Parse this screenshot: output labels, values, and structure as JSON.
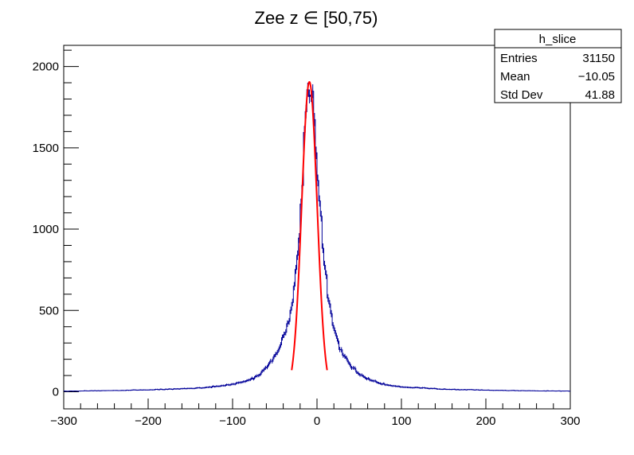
{
  "chart_data": {
    "type": "histogram",
    "title": "Zee z ∈ [50,75)",
    "xlabel": "",
    "ylabel": "",
    "xlim": [
      -300,
      300
    ],
    "ylim": [
      -105,
      2130
    ],
    "x_ticks": [
      -300,
      -200,
      -100,
      0,
      100,
      200,
      300
    ],
    "y_ticks": [
      0,
      500,
      1000,
      1500,
      2000
    ],
    "grid": false,
    "bin_width": 2,
    "series": [
      {
        "color": "#000099",
        "profile": [
          [
            -300,
            4
          ],
          [
            -250,
            7
          ],
          [
            -200,
            12
          ],
          [
            -150,
            20
          ],
          [
            -120,
            32
          ],
          [
            -100,
            45
          ],
          [
            -80,
            72
          ],
          [
            -70,
            98
          ],
          [
            -60,
            150
          ],
          [
            -50,
            220
          ],
          [
            -45,
            265
          ],
          [
            -40,
            330
          ],
          [
            -35,
            420
          ],
          [
            -30,
            520
          ],
          [
            -28,
            590
          ],
          [
            -26,
            680
          ],
          [
            -24,
            780
          ],
          [
            -22,
            900
          ],
          [
            -20,
            1050
          ],
          [
            -18,
            1240
          ],
          [
            -16,
            1440
          ],
          [
            -14,
            1640
          ],
          [
            -12,
            1820
          ],
          [
            -10,
            1900
          ],
          [
            -8,
            1930
          ],
          [
            -6,
            1860
          ],
          [
            -4,
            1720
          ],
          [
            -2,
            1580
          ],
          [
            0,
            1450
          ],
          [
            2,
            1280
          ],
          [
            4,
            1120
          ],
          [
            6,
            960
          ],
          [
            8,
            830
          ],
          [
            10,
            720
          ],
          [
            12,
            640
          ],
          [
            14,
            560
          ],
          [
            16,
            500
          ],
          [
            18,
            440
          ],
          [
            20,
            390
          ],
          [
            25,
            300
          ],
          [
            30,
            235
          ],
          [
            35,
            195
          ],
          [
            40,
            160
          ],
          [
            50,
            110
          ],
          [
            60,
            80
          ],
          [
            70,
            60
          ],
          [
            80,
            45
          ],
          [
            100,
            30
          ],
          [
            150,
            16
          ],
          [
            200,
            10
          ],
          [
            250,
            6
          ],
          [
            300,
            4
          ]
        ],
        "noise": 0.05
      },
      {
        "type": "line",
        "color": "#ff0000",
        "fit_range": [
          -30,
          12
        ],
        "gaussian": {
          "amplitude": 1905,
          "mean": -9,
          "sigma": 9.1
        }
      }
    ]
  },
  "stats_box": {
    "title": "h_slice",
    "rows": [
      {
        "label": "Entries",
        "value": "31150"
      },
      {
        "label": "Mean",
        "value": "−10.05"
      },
      {
        "label": "Std Dev",
        "value": "41.88"
      }
    ]
  }
}
